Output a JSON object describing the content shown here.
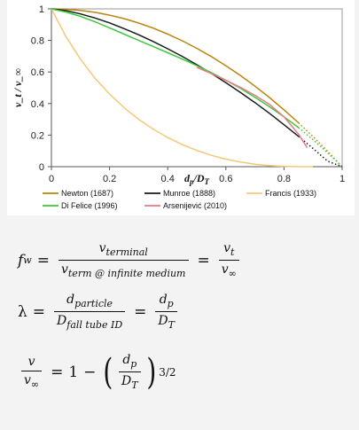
{
  "chart_data": {
    "type": "line",
    "xlabel_main": "d",
    "xlabel_sub": "p",
    "xlabel_rest": "/D",
    "xlabel_sub2": "T",
    "ylabel": "v_t / v_∞",
    "xlim": [
      0,
      1
    ],
    "ylim": [
      0,
      1
    ],
    "x_ticks": [
      "0",
      "0.2",
      "0.4",
      "0.6",
      "0.8",
      "1"
    ],
    "y_ticks": [
      "0",
      "0.2",
      "0.4",
      "0.6",
      "0.8",
      "1"
    ],
    "grid": false,
    "legend_position": "bottom",
    "series": [
      {
        "name": "Newton (1687)",
        "color": "#b8860b",
        "style": "solid",
        "x": [
          0,
          0.05,
          0.1,
          0.15,
          0.2,
          0.25,
          0.3,
          0.35,
          0.4,
          0.45,
          0.5,
          0.55,
          0.6,
          0.65,
          0.7,
          0.75,
          0.8,
          0.85
        ],
        "y": [
          1,
          0.997,
          0.99,
          0.978,
          0.96,
          0.938,
          0.91,
          0.878,
          0.84,
          0.798,
          0.75,
          0.698,
          0.64,
          0.578,
          0.51,
          0.438,
          0.36,
          0.278
        ]
      },
      {
        "name": "Newton (1687)",
        "color": "#b8860b",
        "style": "dotted",
        "x": [
          0.85,
          0.9,
          0.95,
          1.0
        ],
        "y": [
          0.278,
          0.19,
          0.098,
          0
        ]
      },
      {
        "name": "Munroe (1888)",
        "color": "#1a1a1a",
        "style": "solid",
        "x": [
          0,
          0.05,
          0.1,
          0.15,
          0.2,
          0.25,
          0.3,
          0.35,
          0.4,
          0.45,
          0.5,
          0.55,
          0.6,
          0.65,
          0.7,
          0.75,
          0.8,
          0.85
        ],
        "y": [
          1,
          0.989,
          0.968,
          0.942,
          0.911,
          0.875,
          0.836,
          0.793,
          0.747,
          0.699,
          0.646,
          0.591,
          0.532,
          0.471,
          0.406,
          0.338,
          0.266,
          0.192
        ]
      },
      {
        "name": "Munroe (1888)",
        "color": "#1a1a1a",
        "style": "dotted",
        "x": [
          0.85,
          0.9,
          0.95,
          1.0
        ],
        "y": [
          0.192,
          0.115,
          0.035,
          0
        ]
      },
      {
        "name": "Francis (1933)",
        "color": "#f5c878",
        "style": "solid",
        "x": [
          0,
          0.05,
          0.1,
          0.15,
          0.2,
          0.25,
          0.3,
          0.35,
          0.4,
          0.45,
          0.5,
          0.55,
          0.6,
          0.65,
          0.7,
          0.75,
          0.8,
          0.85,
          0.9
        ],
        "y": [
          1,
          0.825,
          0.681,
          0.56,
          0.46,
          0.374,
          0.3,
          0.238,
          0.185,
          0.14,
          0.103,
          0.072,
          0.048,
          0.03,
          0.016,
          0.007,
          0.002,
          0.0,
          0.0
        ]
      },
      {
        "name": "Di Felice (1996)",
        "color": "#3ec93e",
        "style": "solid",
        "x": [
          0,
          0.05,
          0.1,
          0.15,
          0.2,
          0.25,
          0.3,
          0.35,
          0.4,
          0.45,
          0.5,
          0.55,
          0.6,
          0.65,
          0.7,
          0.75,
          0.8,
          0.85
        ],
        "y": [
          1,
          0.98,
          0.952,
          0.918,
          0.88,
          0.84,
          0.8,
          0.762,
          0.722,
          0.682,
          0.64,
          0.596,
          0.548,
          0.497,
          0.44,
          0.38,
          0.316,
          0.248
        ]
      },
      {
        "name": "Di Felice (1996)",
        "color": "#3ec93e",
        "style": "dotted",
        "x": [
          0.85,
          0.9,
          0.95,
          1.0
        ],
        "y": [
          0.248,
          0.17,
          0.088,
          0
        ]
      },
      {
        "name": "Arsenijević (2010)",
        "color": "#e87a86",
        "style": "solid",
        "x": [
          0.5,
          0.55,
          0.6,
          0.65,
          0.7,
          0.75,
          0.8,
          0.85,
          0.88
        ],
        "y": [
          0.63,
          0.59,
          0.547,
          0.502,
          0.452,
          0.395,
          0.316,
          0.206,
          0.12
        ]
      }
    ],
    "legend": [
      {
        "name": "Newton (1687)",
        "color": "#b8860b"
      },
      {
        "name": "Munroe (1888)",
        "color": "#1a1a1a"
      },
      {
        "name": "Francis (1933)",
        "color": "#f5c878"
      },
      {
        "name": "Di Felice (1996)",
        "color": "#3ec93e"
      },
      {
        "name": "Arsenijević (2010)",
        "color": "#e87a86"
      }
    ]
  },
  "equations": {
    "eq1": {
      "lhs": "f",
      "lhs_sub": "w",
      "num1": "v",
      "num1_sub": "terminal",
      "den1": "v",
      "den1_sub": "term @ infinite medium",
      "num2": "v",
      "num2_sub": "t",
      "den2": "v",
      "den2_sub": "∞"
    },
    "eq2": {
      "lhs": "λ",
      "num1": "d",
      "num1_sub": "particle",
      "den1": "D",
      "den1_sub": "fall tube ID",
      "num2": "d",
      "num2_sub": "p",
      "den2": "D",
      "den2_sub": "T"
    },
    "eq3": {
      "num1": "v",
      "den1": "v",
      "den1_sub": "∞",
      "one": "1",
      "minus": "−",
      "num2": "d",
      "num2_sub": "p",
      "den2": "D",
      "den2_sub": "T",
      "exponent": "3/2"
    },
    "equals": "=",
    "lparen": "(",
    "rparen": ")"
  }
}
